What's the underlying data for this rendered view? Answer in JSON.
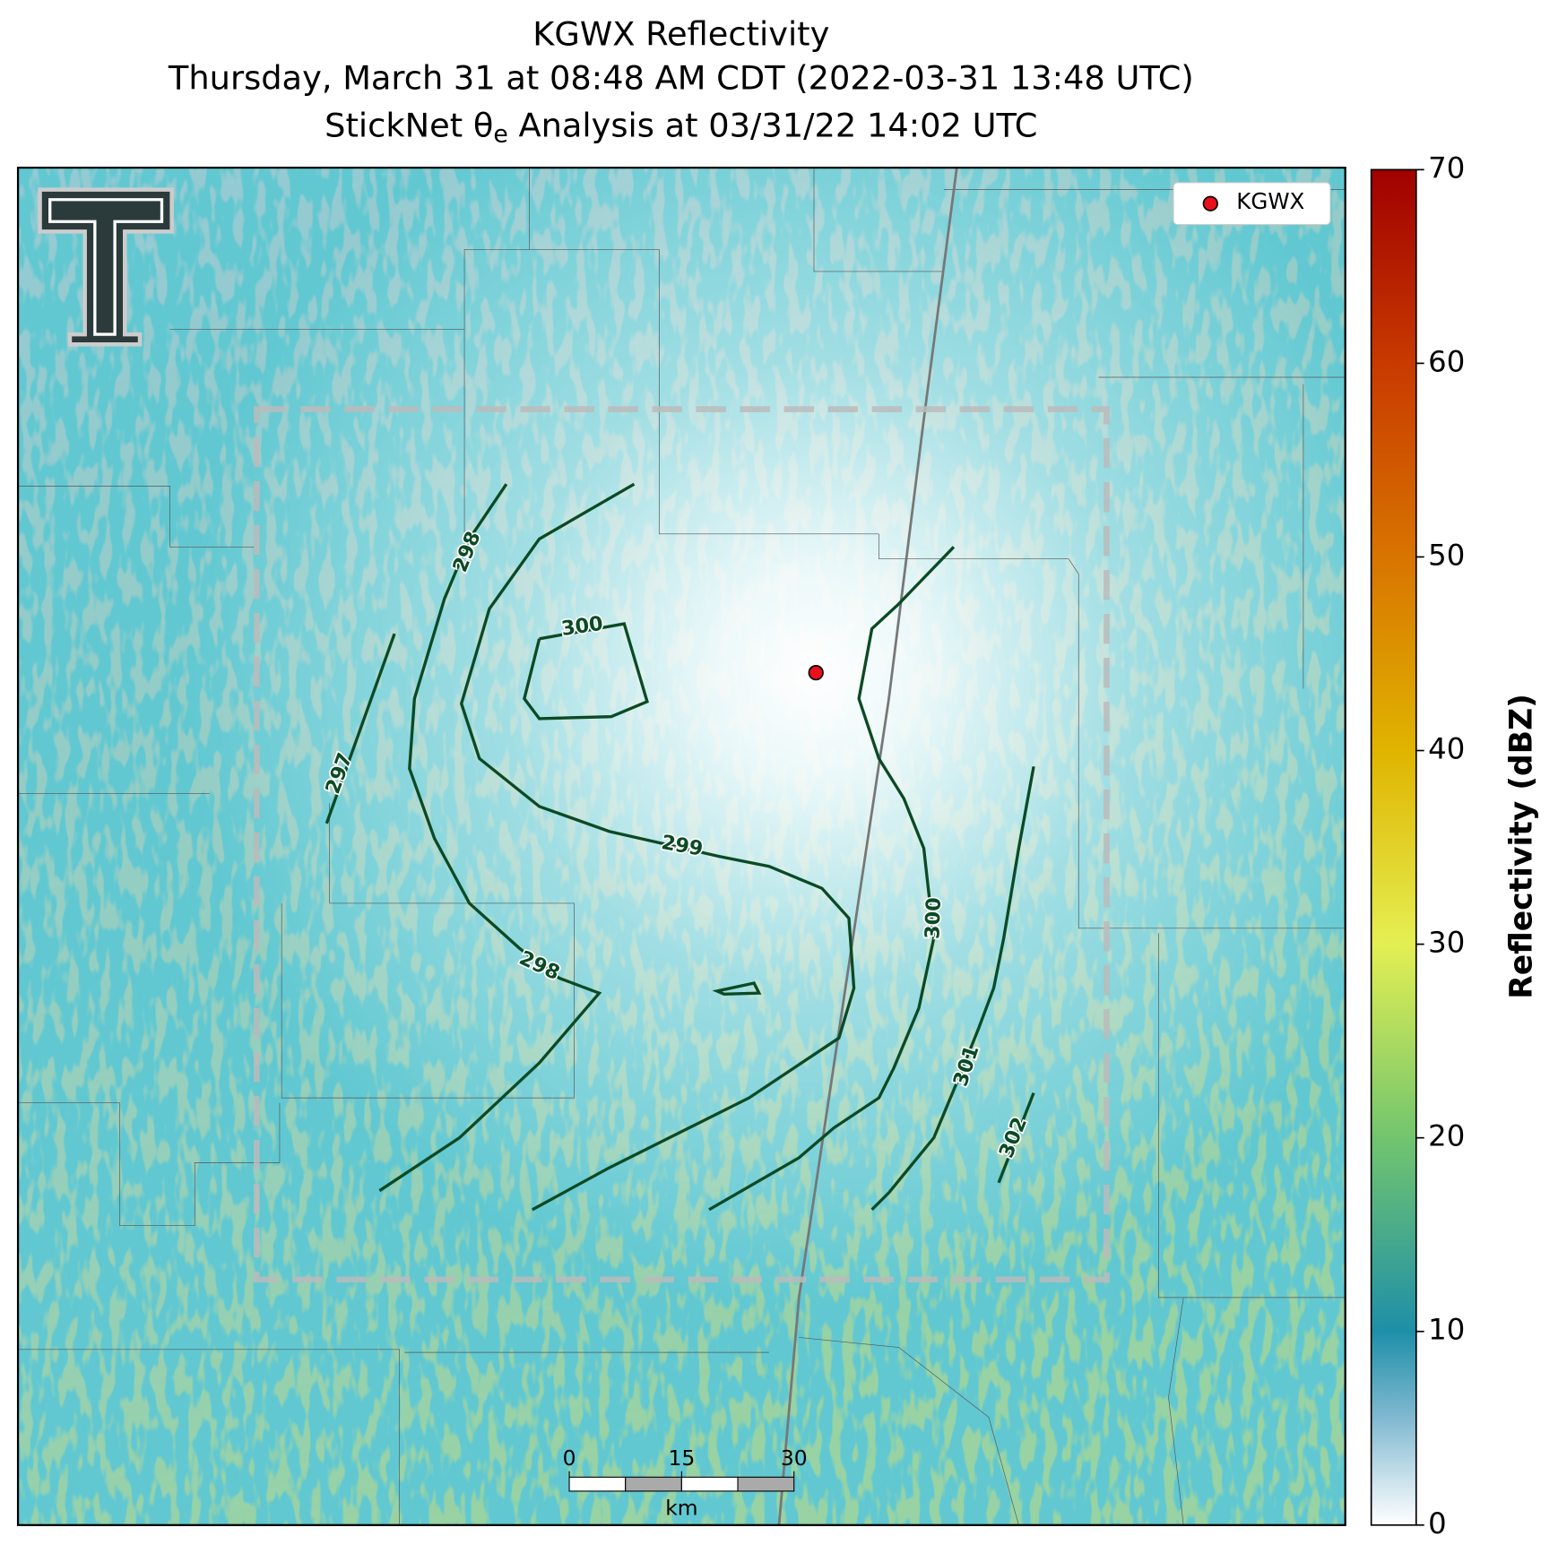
{
  "title": {
    "line1": "KGWX Reflectivity",
    "line2": "Thursday, March 31 at 08:48 AM CDT (2022-03-31 13:48 UTC)",
    "line3_pre": "StickNet θ",
    "line3_sub": "e",
    "line3_post": " Analysis at 03/31/22 14:02 UTC"
  },
  "legend": {
    "label": "KGWX",
    "color": "#e8101a"
  },
  "colorbar": {
    "label": "Reflectivity (dBZ)",
    "lim": [
      0,
      70
    ],
    "ticks": [
      0,
      10,
      20,
      30,
      40,
      50,
      60,
      70
    ]
  },
  "scalebar": {
    "ticks": [
      0,
      15,
      30
    ],
    "unit": "km"
  },
  "contour_labels": [
    297,
    298,
    298,
    300,
    299,
    300,
    301,
    302
  ]
}
